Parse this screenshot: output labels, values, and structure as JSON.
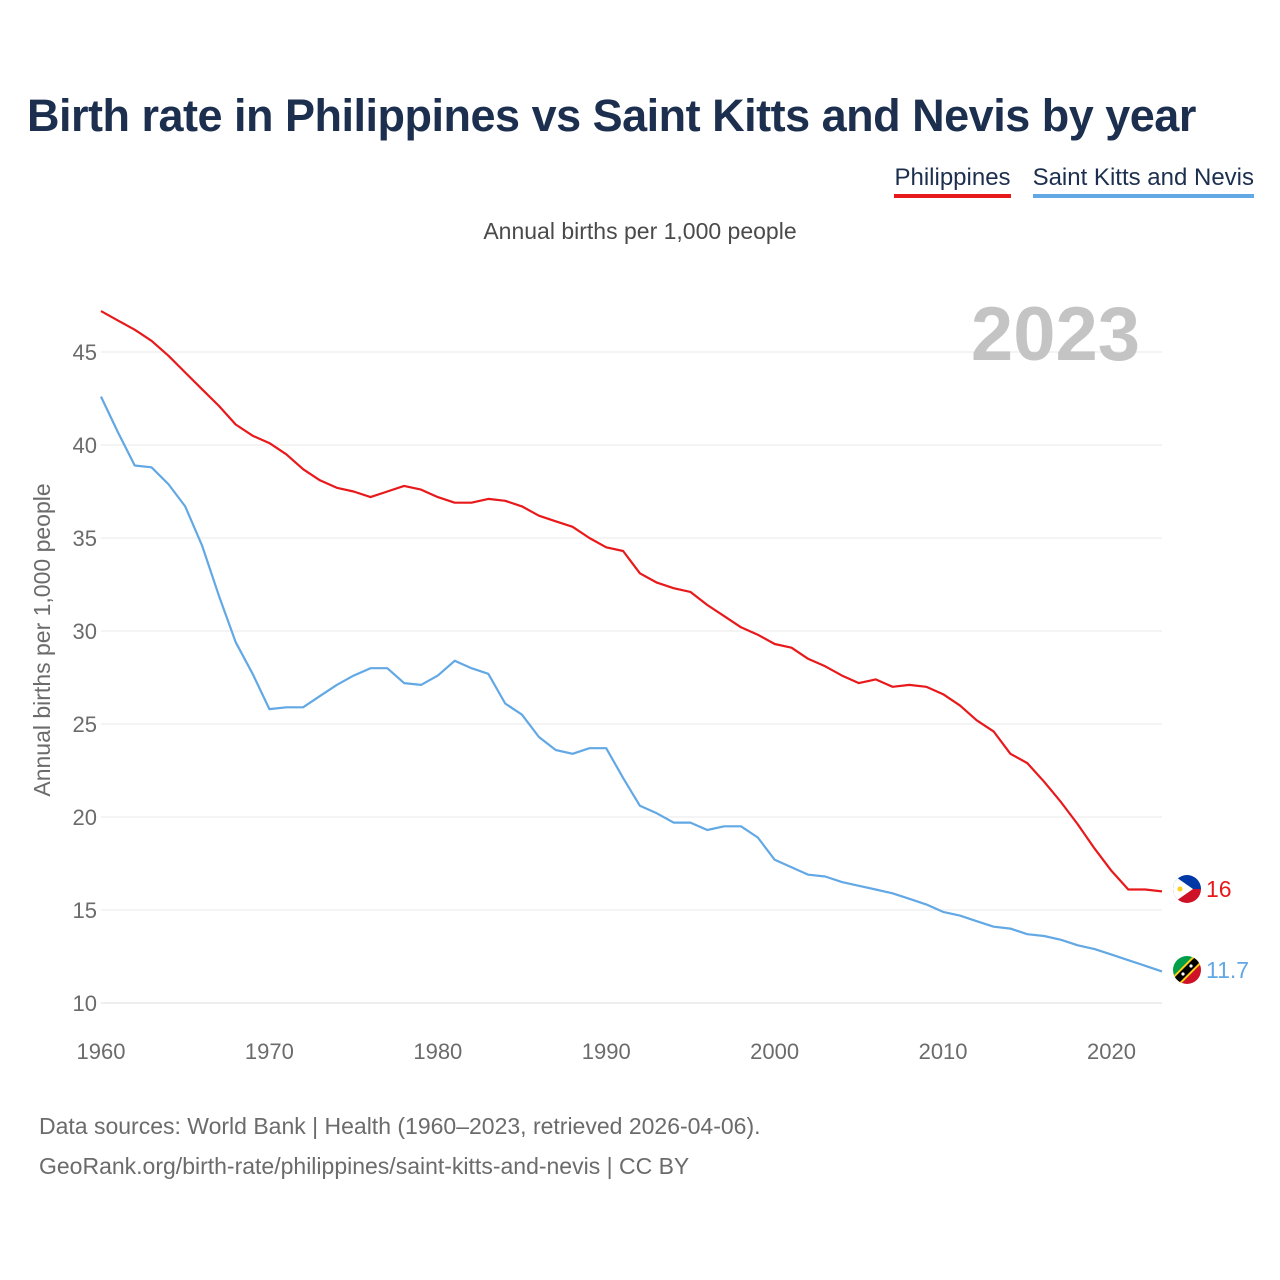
{
  "title": "Birth rate in Philippines vs Saint Kitts and Nevis by year",
  "subtitle": "Annual births per 1,000 people",
  "year_watermark": "2023",
  "legend": {
    "philippines": "Philippines",
    "saint_kitts": "Saint Kitts and Nevis"
  },
  "end_labels": {
    "philippines": "16",
    "saint_kitts": "11.7"
  },
  "colors": {
    "philippines": "#e8191b",
    "saint_kitts": "#62a8e5",
    "title": "#1c2f4f"
  },
  "source": {
    "line1": "Data sources: World Bank | Health (1960–2023, retrieved 2026-04-06).",
    "line2": "GeoRank.org/birth-rate/philippines/saint-kitts-and-nevis | CC BY"
  },
  "chart_data": {
    "type": "line",
    "title": "Birth rate in Philippines vs Saint Kitts and Nevis by year",
    "xlabel": "",
    "ylabel": "Annual births per 1,000 people",
    "xlim": [
      1960,
      2023
    ],
    "ylim": [
      10,
      47.5
    ],
    "xticks": [
      1960,
      1970,
      1980,
      1990,
      2000,
      2010,
      2020
    ],
    "yticks": [
      10,
      15,
      20,
      25,
      30,
      35,
      40,
      45
    ],
    "grid": true,
    "legend": "top-right",
    "x": [
      1960,
      1961,
      1962,
      1963,
      1964,
      1965,
      1966,
      1967,
      1968,
      1969,
      1970,
      1971,
      1972,
      1973,
      1974,
      1975,
      1976,
      1977,
      1978,
      1979,
      1980,
      1981,
      1982,
      1983,
      1984,
      1985,
      1986,
      1987,
      1988,
      1989,
      1990,
      1991,
      1992,
      1993,
      1994,
      1995,
      1996,
      1997,
      1998,
      1999,
      2000,
      2001,
      2002,
      2003,
      2004,
      2005,
      2006,
      2007,
      2008,
      2009,
      2010,
      2011,
      2012,
      2013,
      2014,
      2015,
      2016,
      2017,
      2018,
      2019,
      2020,
      2021,
      2022,
      2023
    ],
    "series": [
      {
        "name": "Philippines",
        "values": [
          47.2,
          46.7,
          46.2,
          45.6,
          44.8,
          43.9,
          43.0,
          42.1,
          41.1,
          40.5,
          40.1,
          39.5,
          38.7,
          38.1,
          37.7,
          37.5,
          37.2,
          37.5,
          37.8,
          37.6,
          37.2,
          36.9,
          36.9,
          37.1,
          37.0,
          36.7,
          36.2,
          35.9,
          35.6,
          35.0,
          34.5,
          34.3,
          33.1,
          32.6,
          32.3,
          32.1,
          31.4,
          30.8,
          30.2,
          29.8,
          29.3,
          29.1,
          28.5,
          28.1,
          27.6,
          27.2,
          27.4,
          27.0,
          27.1,
          27.0,
          26.6,
          26.0,
          25.2,
          24.6,
          23.4,
          22.9,
          21.9,
          20.8,
          19.6,
          18.3,
          17.1,
          16.1,
          16.1,
          16.0
        ]
      },
      {
        "name": "Saint Kitts and Nevis",
        "values": [
          42.6,
          40.7,
          38.9,
          38.8,
          37.9,
          36.7,
          34.6,
          31.9,
          29.4,
          27.7,
          25.8,
          25.9,
          25.9,
          26.5,
          27.1,
          27.6,
          28.0,
          28.0,
          27.2,
          27.1,
          27.6,
          28.4,
          28.0,
          27.7,
          26.1,
          25.5,
          24.3,
          23.6,
          23.4,
          23.7,
          23.7,
          22.1,
          20.6,
          20.2,
          19.7,
          19.7,
          19.3,
          19.5,
          19.5,
          18.9,
          17.7,
          17.3,
          16.9,
          16.8,
          16.5,
          16.3,
          16.1,
          15.9,
          15.6,
          15.3,
          14.9,
          14.7,
          14.4,
          14.1,
          14.0,
          13.7,
          13.6,
          13.4,
          13.1,
          12.9,
          12.6,
          12.3,
          12.0,
          11.7
        ]
      }
    ]
  }
}
